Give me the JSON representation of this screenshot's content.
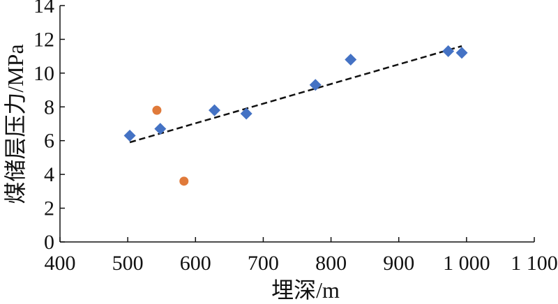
{
  "chart_data": {
    "type": "scatter",
    "xlabel": "埋深/m",
    "ylabel": "煤储层压力/MPa",
    "xlim": [
      400,
      1100
    ],
    "ylim": [
      0,
      14
    ],
    "x_ticks": [
      400,
      500,
      600,
      700,
      800,
      900,
      1000,
      1100
    ],
    "x_tick_labels": [
      "400",
      "500",
      "600",
      "700",
      "800",
      "900",
      "1 000",
      "1 100"
    ],
    "y_ticks": [
      0,
      2,
      4,
      6,
      8,
      10,
      12,
      14
    ],
    "y_tick_labels": [
      "0",
      "2",
      "4",
      "6",
      "8",
      "10",
      "12",
      "14"
    ],
    "grid": false,
    "series": [
      {
        "marker": "diamond",
        "color": "#4472c4",
        "points": [
          {
            "x": 503,
            "y": 6.3
          },
          {
            "x": 548,
            "y": 6.7
          },
          {
            "x": 628,
            "y": 7.8
          },
          {
            "x": 675,
            "y": 7.6
          },
          {
            "x": 777,
            "y": 9.3
          },
          {
            "x": 829,
            "y": 10.8
          },
          {
            "x": 973,
            "y": 11.3
          },
          {
            "x": 993,
            "y": 11.2
          }
        ]
      },
      {
        "marker": "circle",
        "color": "#e07a3a",
        "points": [
          {
            "x": 543,
            "y": 7.8
          },
          {
            "x": 583,
            "y": 3.6
          }
        ]
      }
    ],
    "trendline": {
      "style": "dashed",
      "color": "#111111",
      "points": [
        {
          "x": 503,
          "y": 5.9
        },
        {
          "x": 993,
          "y": 11.6
        }
      ]
    }
  }
}
